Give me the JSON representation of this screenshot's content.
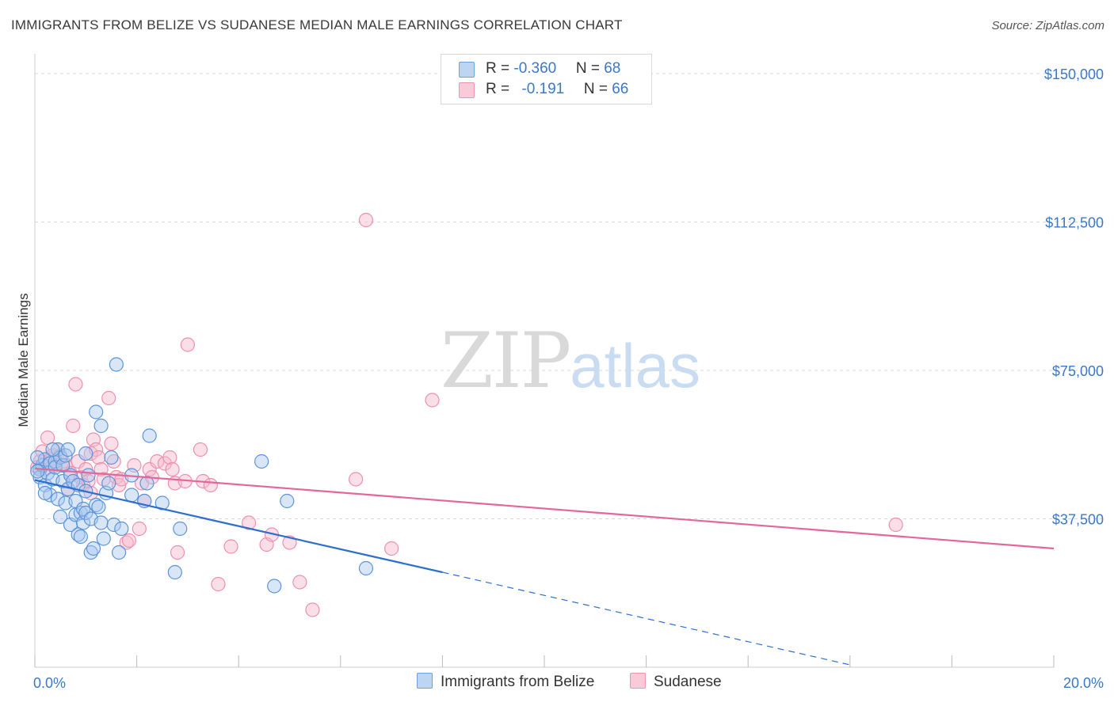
{
  "title": "IMMIGRANTS FROM BELIZE VS SUDANESE MEDIAN MALE EARNINGS CORRELATION CHART",
  "source": "Source: ZipAtlas.com",
  "watermark": {
    "zip": "ZIP",
    "atlas": "atlas"
  },
  "legend": {
    "belize": {
      "r_label": "R = ",
      "r_value": "-0.360",
      "n_label": "N = ",
      "n_value": "68"
    },
    "sudanese": {
      "r_label": "R = ",
      "r_value": "-0.191",
      "n_label": "N = ",
      "n_value": "66"
    }
  },
  "bottom_legend": {
    "belize": "Immigrants from Belize",
    "sudanese": "Sudanese"
  },
  "colors": {
    "belize_fill": "#a9c8ef",
    "belize_stroke": "#5b95d8",
    "belize_line": "#2d6fcf",
    "sudanese_fill": "#f6b8cb",
    "sudanese_stroke": "#ee8fae",
    "sudanese_line": "#e3679a",
    "grid": "#d8d8d8",
    "axis_label": "#3b78c8"
  },
  "chart_data": {
    "type": "scatter",
    "title": "IMMIGRANTS FROM BELIZE VS SUDANESE MEDIAN MALE EARNINGS CORRELATION CHART",
    "xlabel": "",
    "ylabel": "Median Male Earnings",
    "xlim": [
      0,
      20
    ],
    "ylim": [
      0,
      153000
    ],
    "x_tick_labels": [
      "0.0%",
      "20.0%"
    ],
    "y_ticks": [
      37500,
      75000,
      112500,
      150000
    ],
    "y_tick_labels": [
      "$37,500",
      "$75,000",
      "$112,500",
      "$150,000"
    ],
    "series": [
      {
        "name": "Immigrants from Belize",
        "points": [
          [
            0.1,
            50000
          ],
          [
            0.1,
            48000
          ],
          [
            0.15,
            51000
          ],
          [
            0.2,
            52500
          ],
          [
            0.2,
            46000
          ],
          [
            0.25,
            49000
          ],
          [
            0.3,
            51500
          ],
          [
            0.3,
            43500
          ],
          [
            0.35,
            47500
          ],
          [
            0.4,
            52000
          ],
          [
            0.4,
            50500
          ],
          [
            0.45,
            55000
          ],
          [
            0.45,
            42500
          ],
          [
            0.5,
            53000
          ],
          [
            0.5,
            38000
          ],
          [
            0.55,
            47000
          ],
          [
            0.55,
            51000
          ],
          [
            0.6,
            41500
          ],
          [
            0.6,
            53500
          ],
          [
            0.65,
            55000
          ],
          [
            0.65,
            45000
          ],
          [
            0.7,
            36000
          ],
          [
            0.7,
            48500
          ],
          [
            0.75,
            47000
          ],
          [
            0.8,
            42000
          ],
          [
            0.8,
            38500
          ],
          [
            0.85,
            46000
          ],
          [
            0.85,
            33500
          ],
          [
            0.9,
            39000
          ],
          [
            0.9,
            33000
          ],
          [
            0.95,
            40000
          ],
          [
            0.95,
            36500
          ],
          [
            1.0,
            54000
          ],
          [
            1.0,
            44500
          ],
          [
            1.0,
            39000
          ],
          [
            1.05,
            48500
          ],
          [
            1.1,
            29000
          ],
          [
            1.1,
            37500
          ],
          [
            1.15,
            30000
          ],
          [
            1.2,
            64500
          ],
          [
            1.2,
            41000
          ],
          [
            1.25,
            40500
          ],
          [
            1.3,
            61000
          ],
          [
            1.3,
            36500
          ],
          [
            1.35,
            32500
          ],
          [
            1.4,
            44000
          ],
          [
            1.45,
            46500
          ],
          [
            1.5,
            53000
          ],
          [
            1.55,
            36000
          ],
          [
            1.6,
            76500
          ],
          [
            1.65,
            29000
          ],
          [
            1.7,
            35000
          ],
          [
            1.9,
            48500
          ],
          [
            1.9,
            43500
          ],
          [
            2.15,
            42000
          ],
          [
            2.2,
            46500
          ],
          [
            2.25,
            58500
          ],
          [
            2.5,
            41500
          ],
          [
            2.75,
            24000
          ],
          [
            2.85,
            35000
          ],
          [
            4.45,
            52000
          ],
          [
            4.7,
            20500
          ],
          [
            4.95,
            42000
          ],
          [
            6.5,
            25000
          ],
          [
            0.05,
            53000
          ],
          [
            0.05,
            49500
          ],
          [
            0.2,
            44000
          ],
          [
            0.35,
            55000
          ]
        ],
        "trend": {
          "x": [
            0.0,
            8.0
          ],
          "y": [
            47300,
            24000
          ],
          "dashed_x": [
            8.0,
            16.0
          ],
          "dashed_y": [
            24000,
            600
          ]
        }
      },
      {
        "name": "Sudanese",
        "points": [
          [
            0.1,
            52000
          ],
          [
            0.15,
            54500
          ],
          [
            0.2,
            50000
          ],
          [
            0.25,
            58000
          ],
          [
            0.3,
            52500
          ],
          [
            0.35,
            53500
          ],
          [
            0.4,
            51000
          ],
          [
            0.45,
            55000
          ],
          [
            0.5,
            53500
          ],
          [
            0.55,
            52000
          ],
          [
            0.6,
            51000
          ],
          [
            0.65,
            45000
          ],
          [
            0.7,
            49000
          ],
          [
            0.75,
            61000
          ],
          [
            0.8,
            71500
          ],
          [
            0.85,
            52000
          ],
          [
            0.9,
            48000
          ],
          [
            0.95,
            46000
          ],
          [
            1.0,
            50000
          ],
          [
            1.05,
            47000
          ],
          [
            1.1,
            44000
          ],
          [
            1.1,
            54000
          ],
          [
            1.15,
            57500
          ],
          [
            1.2,
            55000
          ],
          [
            1.25,
            53000
          ],
          [
            1.3,
            50000
          ],
          [
            1.35,
            47500
          ],
          [
            1.45,
            68000
          ],
          [
            1.5,
            56500
          ],
          [
            1.55,
            52000
          ],
          [
            1.6,
            48000
          ],
          [
            1.65,
            46000
          ],
          [
            1.7,
            47500
          ],
          [
            1.8,
            31500
          ],
          [
            1.85,
            32000
          ],
          [
            1.95,
            51000
          ],
          [
            2.05,
            35000
          ],
          [
            2.1,
            46500
          ],
          [
            2.15,
            42000
          ],
          [
            2.25,
            50000
          ],
          [
            2.3,
            48000
          ],
          [
            2.4,
            52000
          ],
          [
            2.55,
            51500
          ],
          [
            2.65,
            53000
          ],
          [
            2.7,
            50000
          ],
          [
            2.75,
            46500
          ],
          [
            2.8,
            29000
          ],
          [
            2.95,
            47000
          ],
          [
            3.0,
            81500
          ],
          [
            3.25,
            55000
          ],
          [
            3.3,
            47000
          ],
          [
            3.45,
            46000
          ],
          [
            3.6,
            21000
          ],
          [
            3.85,
            30500
          ],
          [
            4.2,
            36500
          ],
          [
            4.55,
            31000
          ],
          [
            4.65,
            33500
          ],
          [
            5.0,
            31500
          ],
          [
            5.2,
            21500
          ],
          [
            5.45,
            14500
          ],
          [
            6.3,
            47500
          ],
          [
            6.5,
            113000
          ],
          [
            7.0,
            30000
          ],
          [
            7.8,
            67500
          ],
          [
            16.9,
            36000
          ],
          [
            0.05,
            50500
          ]
        ],
        "trend": {
          "x": [
            0.0,
            20.0
          ],
          "y": [
            50200,
            30000
          ]
        }
      }
    ]
  }
}
